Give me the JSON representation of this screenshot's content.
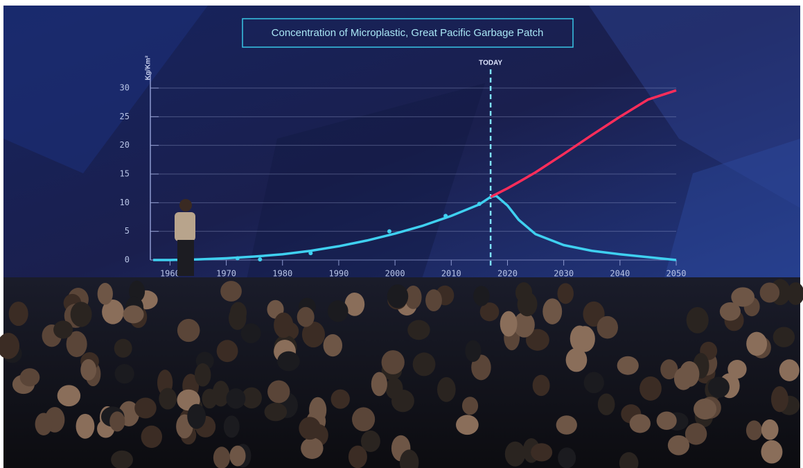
{
  "chart_data": {
    "type": "line",
    "title": "Concentration of Microplastic, Great Pacific Garbage Patch",
    "y_label": "Kg/Km²",
    "annotation": {
      "text": "TODAY",
      "x": 2017
    },
    "x": [
      1957,
      1960,
      1965,
      1970,
      1975,
      1980,
      1985,
      1990,
      1995,
      2000,
      2005,
      2010,
      2015,
      2017,
      2018,
      2020,
      2022,
      2025,
      2030,
      2035,
      2040,
      2045,
      2050
    ],
    "series": [
      {
        "color": "#3fd0f0",
        "values": [
          0,
          0,
          0.1,
          0.3,
          0.6,
          1,
          1.6,
          2.4,
          3.4,
          4.6,
          6,
          7.7,
          9.7,
          11,
          11.2,
          9.5,
          7,
          4.5,
          2.6,
          1.6,
          1,
          0.5,
          0
        ]
      },
      {
        "color": "#ff2d5a",
        "values": [
          null,
          null,
          null,
          null,
          null,
          null,
          null,
          null,
          null,
          null,
          null,
          null,
          null,
          11,
          11.5,
          12.5,
          13.6,
          15.3,
          18.5,
          21.8,
          25,
          28,
          29.6
        ]
      }
    ],
    "markers": {
      "color": "#3fd0f0",
      "x": [
        1972,
        1976,
        1985,
        1999,
        2009,
        2015
      ],
      "values": [
        0.3,
        0.1,
        1.2,
        5,
        7.7,
        9.8
      ]
    },
    "xlim": [
      1956.5,
      2050
    ],
    "xticks": [
      1960,
      1970,
      1980,
      1990,
      2000,
      2010,
      2020,
      2030,
      2040,
      2050
    ],
    "ylim": [
      0,
      30
    ],
    "yticks": [
      0,
      5,
      10,
      15,
      20,
      25,
      30
    ],
    "grid": true
  }
}
